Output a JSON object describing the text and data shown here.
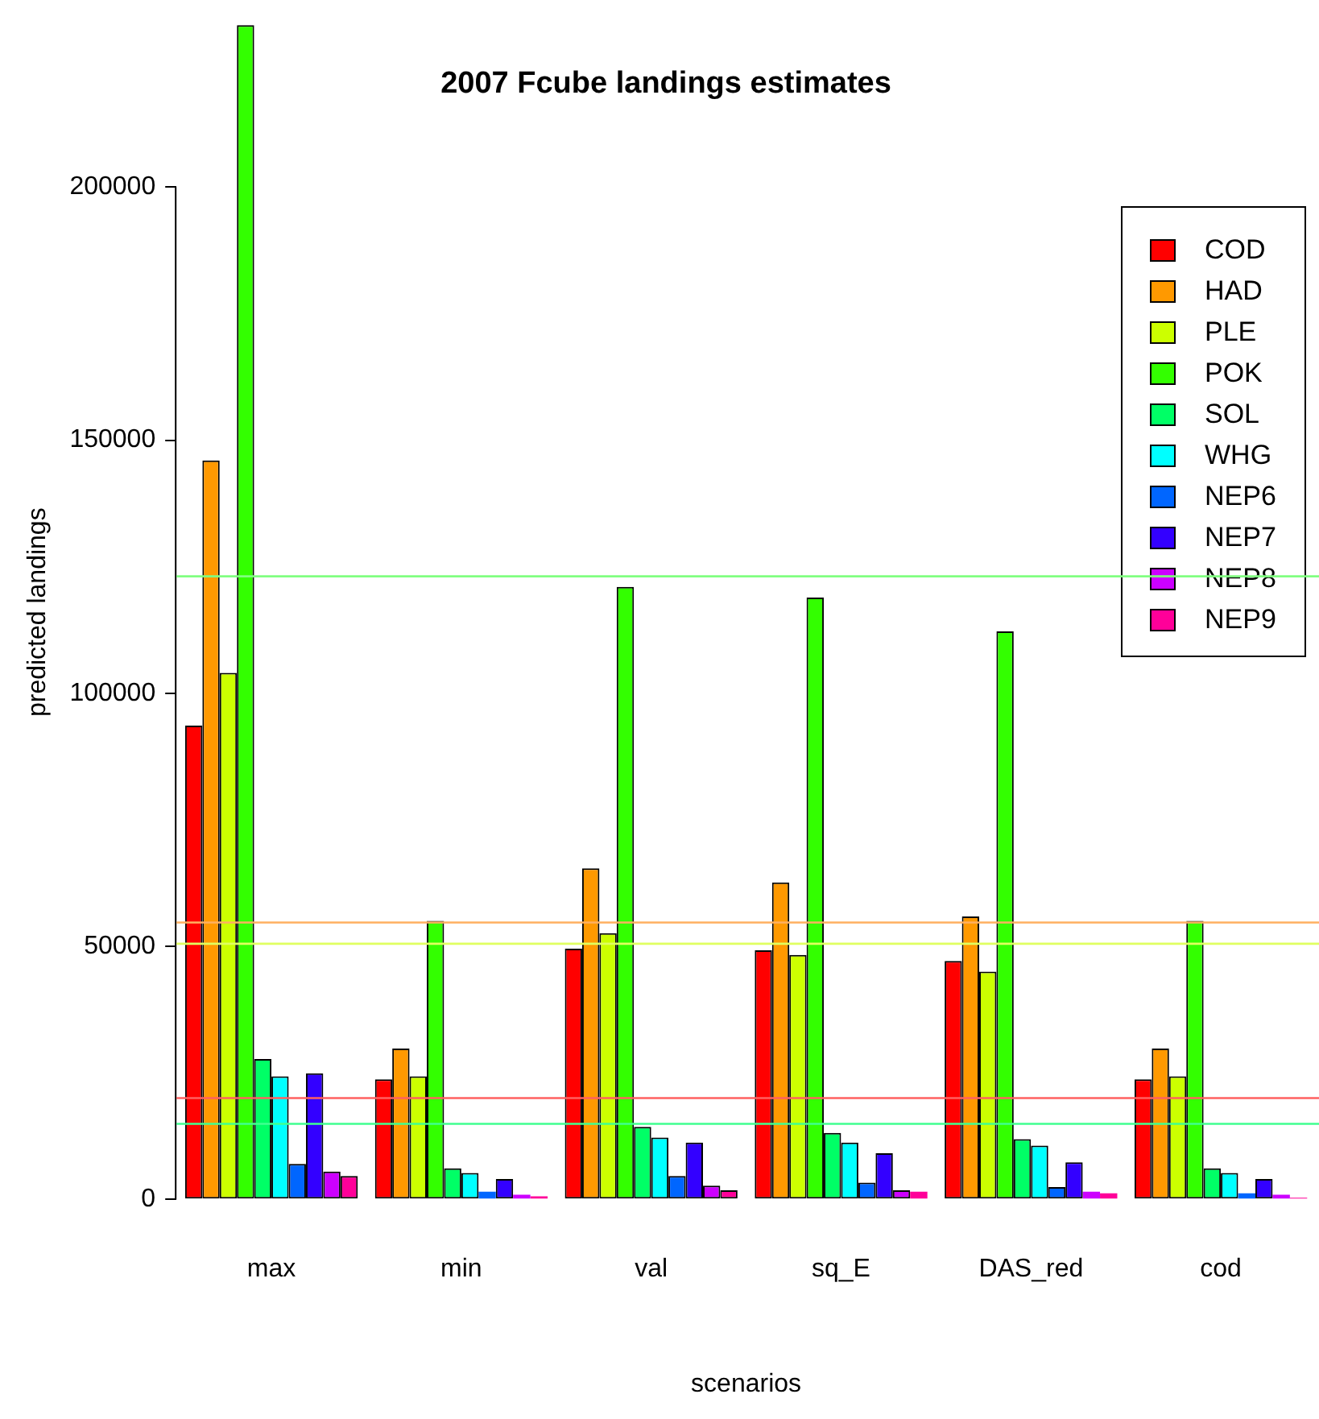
{
  "chart_data": {
    "type": "bar",
    "title": "2007 Fcube landings estimates",
    "xlabel": "scenarios",
    "ylabel": "predicted landings",
    "categories": [
      "max",
      "min",
      "val",
      "sq_E",
      "DAS_red",
      "cod"
    ],
    "series": [
      {
        "name": "COD",
        "color": "#ff0000",
        "values": [
          93600,
          23700,
          49500,
          49200,
          47100,
          23700
        ]
      },
      {
        "name": "HAD",
        "color": "#ff9900",
        "values": [
          146000,
          29800,
          65400,
          62600,
          55900,
          29800
        ]
      },
      {
        "name": "PLE",
        "color": "#ccff00",
        "values": [
          104000,
          24300,
          52600,
          48300,
          45000,
          24300
        ]
      },
      {
        "name": "POK",
        "color": "#33ff00",
        "values": [
          232000,
          55000,
          121000,
          118900,
          112200,
          55000
        ]
      },
      {
        "name": "SOL",
        "color": "#00ff66",
        "values": [
          27700,
          6100,
          14300,
          13100,
          11900,
          6100
        ]
      },
      {
        "name": "WHG",
        "color": "#00ffff",
        "values": [
          24300,
          5200,
          12200,
          11200,
          10600,
          5200
        ]
      },
      {
        "name": "NEP6",
        "color": "#0066ff",
        "values": [
          7000,
          1500,
          4600,
          3300,
          2400,
          1200
        ]
      },
      {
        "name": "NEP7",
        "color": "#3300ff",
        "values": [
          24900,
          4000,
          11200,
          9100,
          7300,
          4000
        ]
      },
      {
        "name": "NEP8",
        "color": "#cc00ff",
        "values": [
          5500,
          900,
          2700,
          1800,
          1500,
          900
        ]
      },
      {
        "name": "NEP9",
        "color": "#ff0099",
        "values": [
          4600,
          600,
          1800,
          1500,
          1200,
          300
        ]
      }
    ],
    "ylim": [
      0,
      232000
    ],
    "yticks": [
      0,
      50000,
      100000,
      150000,
      200000
    ],
    "grid": false,
    "legend": "top right",
    "ref_lines": [
      {
        "axis": "y",
        "value": 123100,
        "color": "#80ff80"
      },
      {
        "axis": "y",
        "value": 54700,
        "color": "#ffb060"
      },
      {
        "axis": "y",
        "value": 50500,
        "color": "#e0ff60"
      },
      {
        "axis": "y",
        "value": 20000,
        "color": "#ff6060"
      },
      {
        "axis": "y",
        "value": 14900,
        "color": "#40ff90"
      }
    ]
  }
}
